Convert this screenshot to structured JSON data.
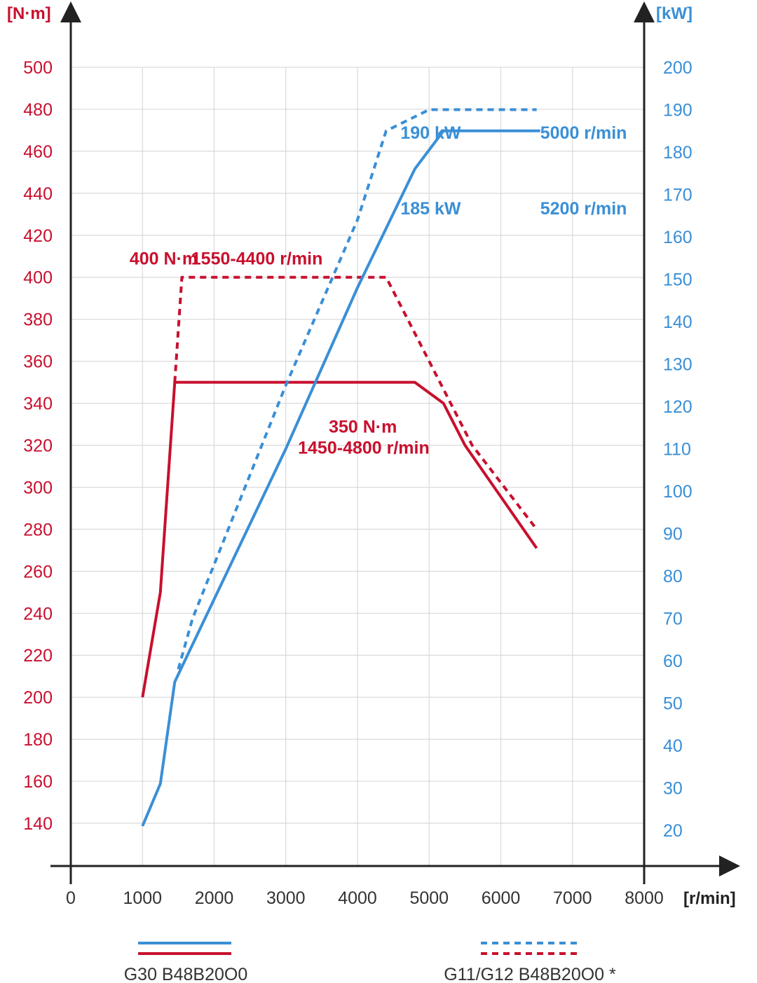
{
  "chart_data": {
    "type": "line",
    "x_unit": "[r/min]",
    "left_unit": "[N·m]",
    "right_unit": "[kW]",
    "xlim": [
      0,
      8000
    ],
    "x_ticks": [
      0,
      1000,
      2000,
      3000,
      4000,
      5000,
      6000,
      7000,
      8000
    ],
    "left_ylim": [
      130,
      500
    ],
    "left_ticks": [
      140,
      160,
      180,
      200,
      220,
      240,
      260,
      280,
      300,
      320,
      340,
      360,
      380,
      400,
      420,
      440,
      460,
      480,
      500
    ],
    "right_ylim": [
      16.7,
      200
    ],
    "right_ticks": [
      20,
      30,
      40,
      50,
      60,
      70,
      80,
      90,
      100,
      110,
      120,
      130,
      140,
      150,
      160,
      170,
      180,
      190,
      200
    ],
    "grid": true,
    "colors": {
      "torque": "#c8102e",
      "power": "#3a8fd6",
      "axis": "#222222",
      "grid": "#d9d9d9"
    },
    "series": [
      {
        "quantity": "torque",
        "axis": "left",
        "style": "solid",
        "legend_ref": 0,
        "points": [
          [
            1000,
            200
          ],
          [
            1250,
            250
          ],
          [
            1450,
            350
          ],
          [
            4800,
            350
          ],
          [
            5200,
            340
          ],
          [
            5500,
            320
          ],
          [
            6500,
            271
          ]
        ]
      },
      {
        "quantity": "torque",
        "axis": "left",
        "style": "dashed",
        "legend_ref": 1,
        "points": [
          [
            1450,
            350
          ],
          [
            1550,
            400
          ],
          [
            4400,
            400
          ],
          [
            5000,
            360
          ],
          [
            5600,
            320
          ],
          [
            6500,
            280
          ]
        ]
      },
      {
        "quantity": "power",
        "axis": "right",
        "style": "solid",
        "legend_ref": 0,
        "points": [
          [
            1000,
            21
          ],
          [
            1250,
            31
          ],
          [
            1450,
            55
          ],
          [
            3000,
            110
          ],
          [
            4000,
            148
          ],
          [
            4800,
            176
          ],
          [
            5200,
            185
          ],
          [
            6550,
            185
          ]
        ]
      },
      {
        "quantity": "power",
        "axis": "right",
        "style": "dashed",
        "legend_ref": 1,
        "points": [
          [
            1500,
            58
          ],
          [
            1700,
            70
          ],
          [
            3000,
            125
          ],
          [
            4000,
            164
          ],
          [
            4400,
            185
          ],
          [
            5000,
            190
          ],
          [
            6500,
            190
          ]
        ]
      }
    ],
    "annotations": [
      {
        "text": "190 kW",
        "color": "power",
        "x": 4600,
        "y_left": 466
      },
      {
        "text": "5000 r/min",
        "color": "power",
        "x": 6550,
        "y_left": 466
      },
      {
        "text": "185 kW",
        "color": "power",
        "x": 4600,
        "y_left": 430
      },
      {
        "text": "5200 r/min",
        "color": "power",
        "x": 6550,
        "y_left": 430
      },
      {
        "text": "400 N·m",
        "color": "torque",
        "x": 820,
        "y_left": 406
      },
      {
        "text": "1550-4400 r/min",
        "color": "torque",
        "x": 1680,
        "y_left": 406
      },
      {
        "text": "350 N·m",
        "color": "torque",
        "x": 3600,
        "y_left": 326
      },
      {
        "text": "1450-4800 r/min",
        "color": "torque",
        "x": 3170,
        "y_left": 316
      }
    ],
    "legend": [
      {
        "label": "G30 B48B20O0",
        "style": "solid"
      },
      {
        "label": "G11/G12 B48B20O0 *",
        "style": "dashed"
      }
    ]
  }
}
